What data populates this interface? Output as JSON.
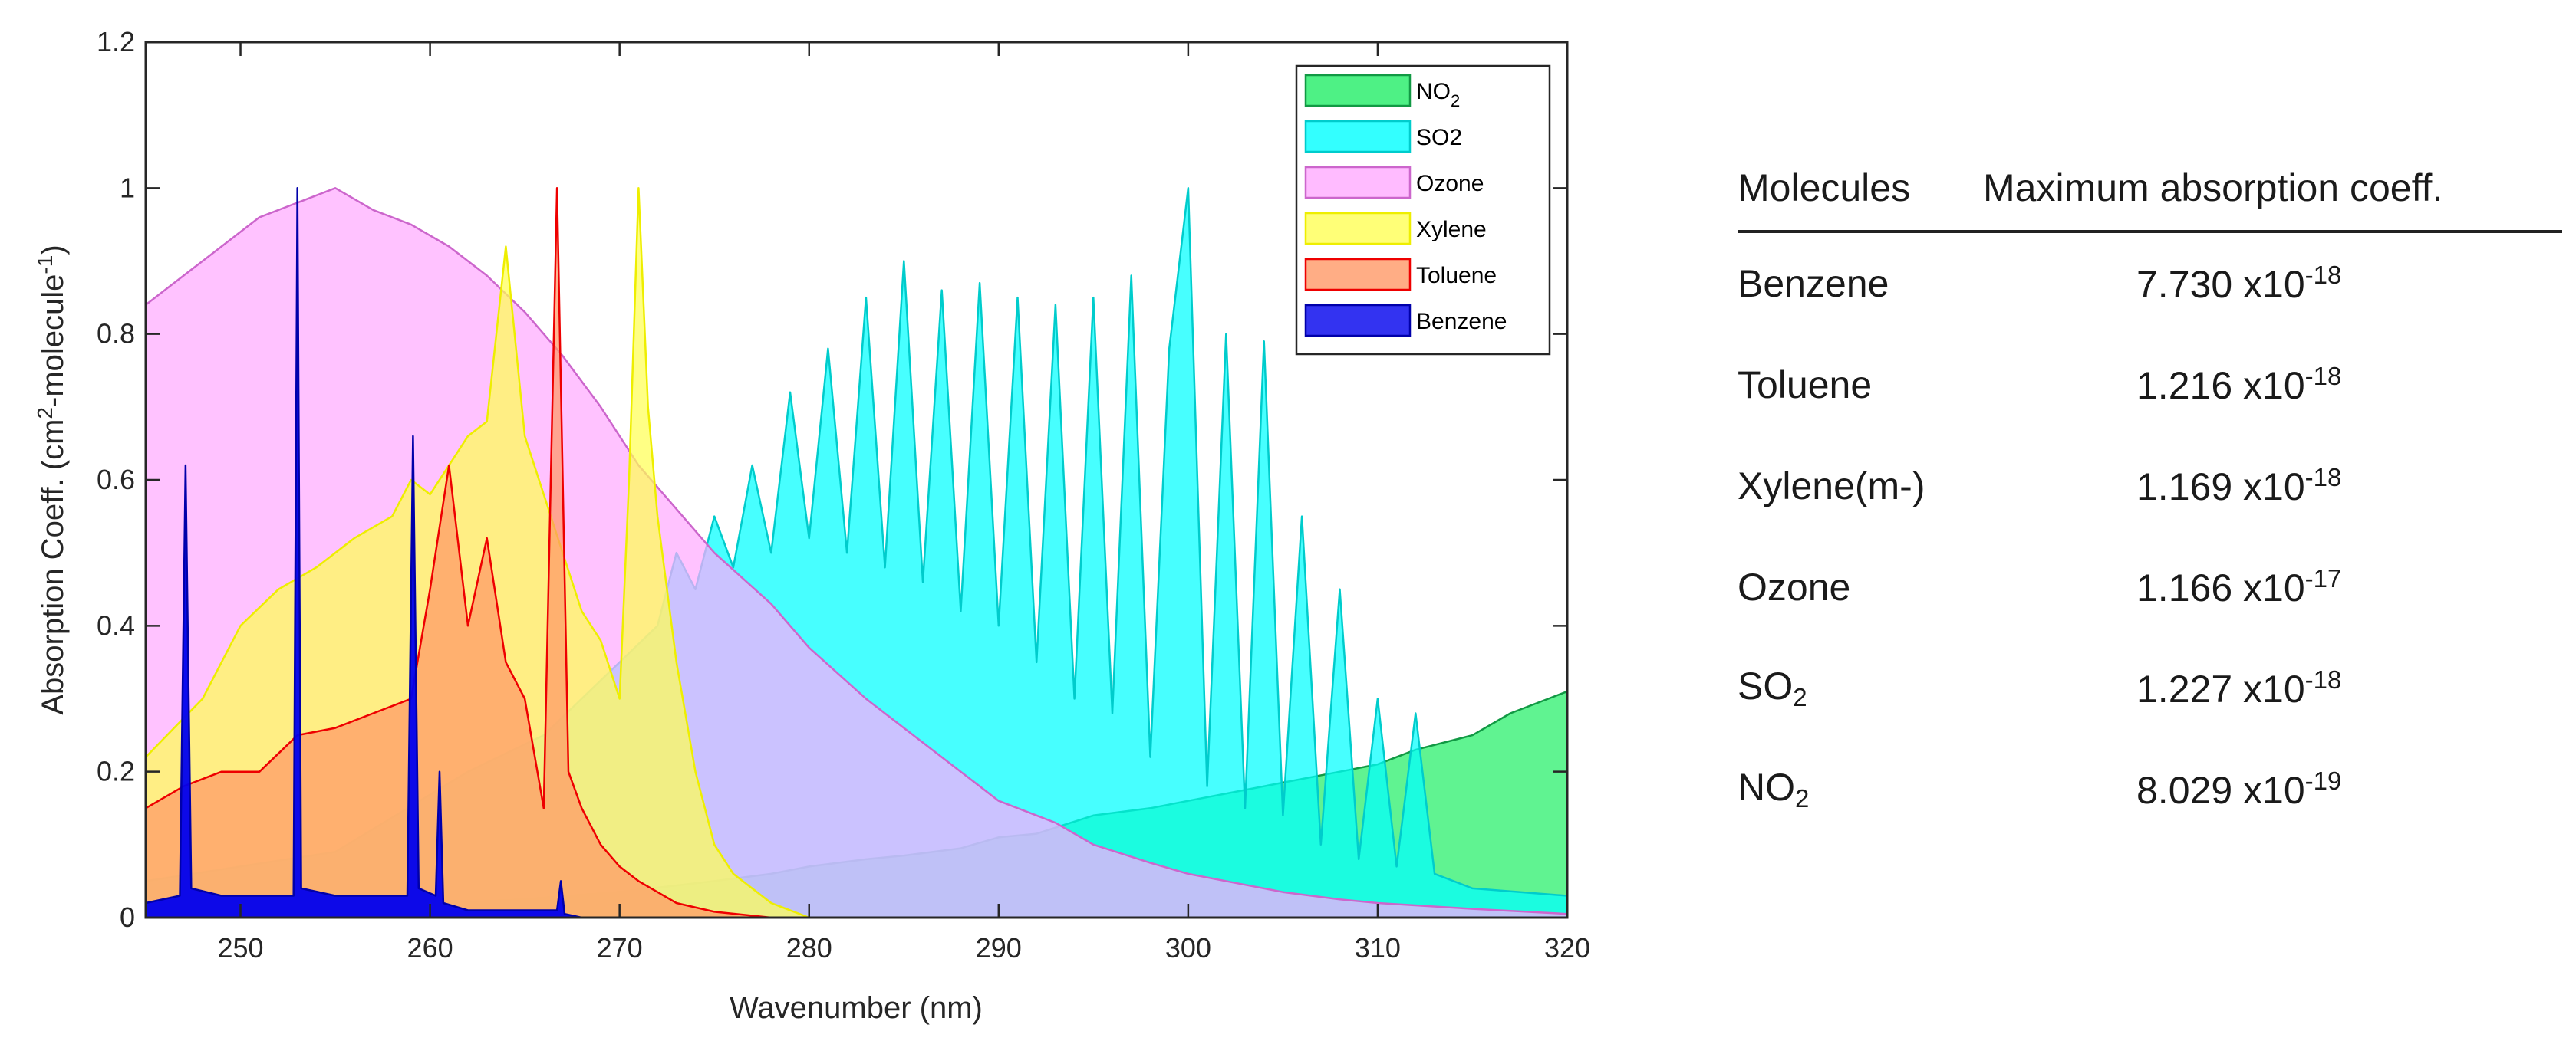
{
  "chart_data": {
    "type": "area",
    "xlabel": "Wavenumber (nm)",
    "ylabel": "Absorption Coeff. (cm",
    "ylabel_sup1": "2",
    "ylabel_mid": "-molecule",
    "ylabel_sup2": "-1",
    "ylabel_end": ")",
    "xlim": [
      245,
      320
    ],
    "ylim": [
      0,
      1.2
    ],
    "x_ticks": [
      250,
      260,
      270,
      280,
      290,
      300,
      310,
      320
    ],
    "y_ticks": [
      0,
      0.2,
      0.4,
      0.6,
      0.8,
      1,
      1.2
    ],
    "y_tick_labels": [
      "0",
      "0.2",
      "0.4",
      "0.6",
      "0.8",
      "1",
      "1.2"
    ],
    "legend_position": "top-right",
    "series": [
      {
        "name": "NO2",
        "legend_main": "NO",
        "legend_sub": "2",
        "fill": "#22ee66",
        "edge": "#119944",
        "x": [
          245,
          250,
          255,
          260,
          265,
          270,
          275,
          278,
          280,
          283,
          285,
          288,
          290,
          292,
          295,
          298,
          300,
          303,
          305,
          308,
          310,
          312,
          315,
          317,
          318,
          319,
          320
        ],
        "y": [
          0.0,
          0.004,
          0.01,
          0.018,
          0.025,
          0.035,
          0.05,
          0.06,
          0.07,
          0.08,
          0.085,
          0.095,
          0.11,
          0.115,
          0.14,
          0.15,
          0.16,
          0.175,
          0.185,
          0.2,
          0.21,
          0.23,
          0.25,
          0.28,
          0.29,
          0.3,
          0.31
        ]
      },
      {
        "name": "SO2",
        "legend_main": "SO2",
        "legend_sub": "",
        "fill": "#00ffff",
        "edge": "#00cccc",
        "x": [
          245,
          255,
          262,
          266,
          270,
          272,
          273,
          274,
          275,
          276,
          277,
          278,
          279,
          280,
          281,
          282,
          283,
          284,
          285,
          286,
          287,
          288,
          289,
          290,
          291,
          292,
          293,
          294,
          295,
          296,
          297,
          298,
          299,
          300,
          301,
          302,
          303,
          304,
          305,
          306,
          307,
          308,
          309,
          310,
          311,
          312,
          313,
          315,
          320
        ],
        "y": [
          0.05,
          0.09,
          0.2,
          0.25,
          0.35,
          0.4,
          0.5,
          0.45,
          0.55,
          0.48,
          0.62,
          0.5,
          0.72,
          0.52,
          0.78,
          0.5,
          0.85,
          0.48,
          0.9,
          0.46,
          0.86,
          0.42,
          0.87,
          0.4,
          0.85,
          0.35,
          0.84,
          0.3,
          0.85,
          0.28,
          0.88,
          0.22,
          0.78,
          1.0,
          0.18,
          0.8,
          0.15,
          0.79,
          0.14,
          0.55,
          0.1,
          0.45,
          0.08,
          0.3,
          0.07,
          0.28,
          0.06,
          0.04,
          0.03
        ]
      },
      {
        "name": "Ozone",
        "legend_main": "Ozone",
        "legend_sub": "",
        "fill": "#ffaaff",
        "edge": "#cc66cc",
        "x": [
          245,
          247,
          249,
          251,
          253,
          255,
          257,
          259,
          261,
          263,
          265,
          267,
          269,
          271,
          273,
          275,
          278,
          280,
          283,
          285,
          288,
          290,
          293,
          295,
          298,
          300,
          303,
          305,
          308,
          310,
          315,
          320
        ],
        "y": [
          0.84,
          0.88,
          0.92,
          0.96,
          0.98,
          1.0,
          0.97,
          0.95,
          0.92,
          0.88,
          0.83,
          0.77,
          0.7,
          0.62,
          0.56,
          0.5,
          0.43,
          0.37,
          0.3,
          0.26,
          0.2,
          0.16,
          0.13,
          0.1,
          0.075,
          0.06,
          0.045,
          0.035,
          0.025,
          0.02,
          0.012,
          0.005
        ]
      },
      {
        "name": "Xylene",
        "legend_main": "Xylene",
        "legend_sub": "",
        "fill": "#ffff55",
        "edge": "#eeee00",
        "x": [
          245,
          248,
          250,
          252,
          254,
          256,
          258,
          259,
          260,
          262,
          263,
          264,
          265,
          266,
          267,
          268,
          269,
          270,
          270.5,
          271,
          271.5,
          272,
          273,
          274,
          275,
          276,
          278,
          280
        ],
        "y": [
          0.22,
          0.3,
          0.4,
          0.45,
          0.48,
          0.52,
          0.55,
          0.6,
          0.58,
          0.66,
          0.68,
          0.92,
          0.66,
          0.58,
          0.5,
          0.42,
          0.38,
          0.3,
          0.6,
          1.0,
          0.7,
          0.55,
          0.35,
          0.2,
          0.1,
          0.06,
          0.02,
          0.0
        ]
      },
      {
        "name": "Toluene",
        "legend_main": "Toluene",
        "legend_sub": "",
        "fill": "#ff9966",
        "edge": "#ee0000",
        "x": [
          245,
          247,
          249,
          251,
          253,
          255,
          257,
          259,
          260,
          261,
          262,
          263,
          264,
          265,
          266,
          266.7,
          267.3,
          268,
          269,
          270,
          271,
          272,
          273,
          275,
          278
        ],
        "y": [
          0.15,
          0.18,
          0.2,
          0.2,
          0.25,
          0.26,
          0.28,
          0.3,
          0.45,
          0.62,
          0.4,
          0.52,
          0.35,
          0.3,
          0.15,
          1.0,
          0.2,
          0.15,
          0.1,
          0.07,
          0.05,
          0.035,
          0.02,
          0.008,
          0.0
        ]
      },
      {
        "name": "Benzene",
        "legend_main": "Benzene",
        "legend_sub": "",
        "fill": "#0000ee",
        "edge": "#0000aa",
        "x": [
          245,
          246.8,
          247.1,
          247.4,
          249,
          252.8,
          253.0,
          253.2,
          255,
          258.8,
          259.1,
          259.4,
          260.3,
          260.5,
          260.7,
          262,
          266.7,
          266.9,
          267.1,
          268
        ],
        "y": [
          0.02,
          0.03,
          0.62,
          0.04,
          0.03,
          0.03,
          1.0,
          0.04,
          0.03,
          0.03,
          0.66,
          0.04,
          0.03,
          0.2,
          0.02,
          0.01,
          0.01,
          0.05,
          0.005,
          0.0
        ]
      }
    ]
  },
  "table": {
    "header_molecules": "Molecules",
    "header_coeff": "Maximum absorption coeff.",
    "rows": [
      {
        "name": "Benzene",
        "name_sub": "",
        "mantissa": "7.730 x10",
        "exponent": "-18"
      },
      {
        "name": "Toluene",
        "name_sub": "",
        "mantissa": "1.216 x10",
        "exponent": "-18"
      },
      {
        "name": "Xylene(m-)",
        "name_sub": "",
        "mantissa": "1.169 x10",
        "exponent": "-18"
      },
      {
        "name": "Ozone",
        "name_sub": "",
        "mantissa": "1.166 x10",
        "exponent": "-17"
      },
      {
        "name": "SO",
        "name_sub": "2",
        "mantissa": "1.227 x10",
        "exponent": "-18"
      },
      {
        "name": "NO",
        "name_sub": "2",
        "mantissa": "8.029 x10",
        "exponent": "-19"
      }
    ]
  }
}
